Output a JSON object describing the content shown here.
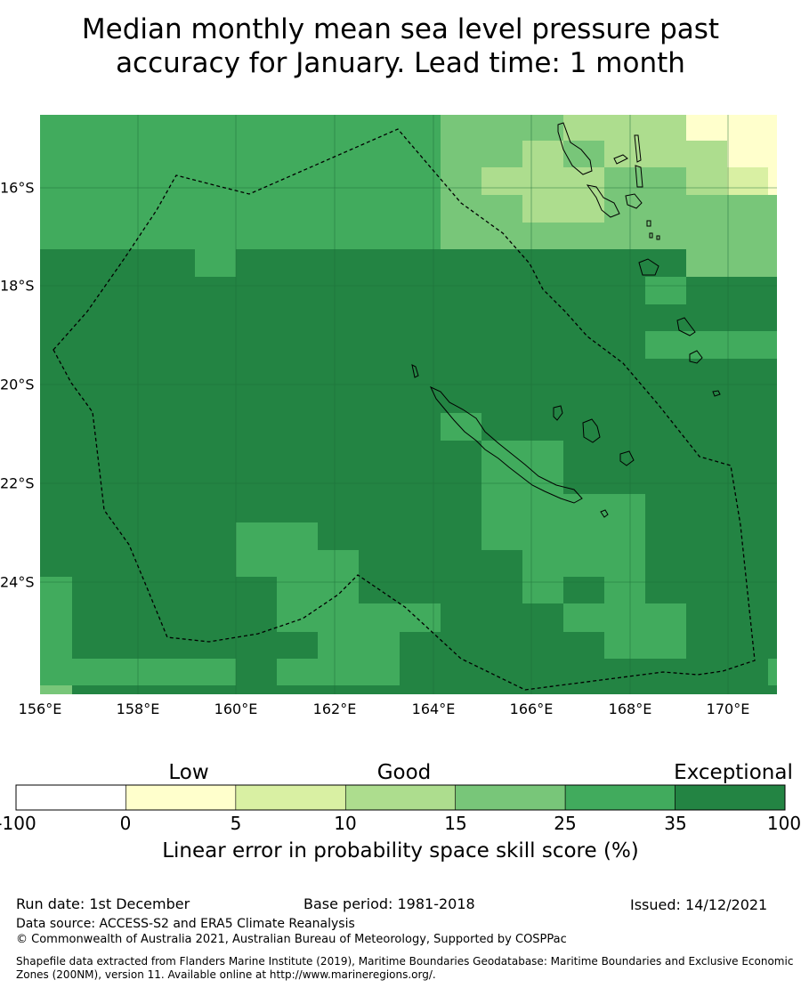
{
  "title_line1": "Median monthly mean sea level pressure past",
  "title_line2": "accuracy for January. Lead time: 1 month",
  "map": {
    "lat_ticks": [
      "16°S",
      "18°S",
      "20°S",
      "22°S",
      "24°S"
    ],
    "lon_ticks": [
      "156°E",
      "158°E",
      "160°E",
      "162°E",
      "164°E",
      "166°E",
      "168°E",
      "170°E"
    ],
    "lon_range": [
      156,
      171
    ],
    "lat_range": [
      -14.5,
      -26.3
    ]
  },
  "legend": {
    "categories": [
      "Low",
      "Good",
      "Exceptional"
    ],
    "ticks": [
      "-100",
      "0",
      "5",
      "10",
      "15",
      "25",
      "35",
      "100"
    ],
    "colors": [
      "#ffffff",
      "#ffffcc",
      "#d9f0a3",
      "#addd8e",
      "#78c679",
      "#41ab5d",
      "#238443"
    ],
    "label": "Linear error in probability space skill score (%)"
  },
  "footer": {
    "run_date": "Run date: 1st December",
    "base_period": "Base period: 1981-2018",
    "issued": "Issued: 14/12/2021",
    "data_source": "Data source: ACCESS-S2 and ERA5 Climate Reanalysis",
    "copyright": "© Commonwealth of Australia 2021, Australian Bureau of Meteorology, Supported by COSPPac",
    "shapefile": "Shapefile data extracted from Flanders Marine Institute (2019), Maritime Boundaries Geodatabase: Maritime Boundaries and Exclusive Economic Zones (200NM), version 11. Available online at http://www.marineregions.org/."
  }
}
